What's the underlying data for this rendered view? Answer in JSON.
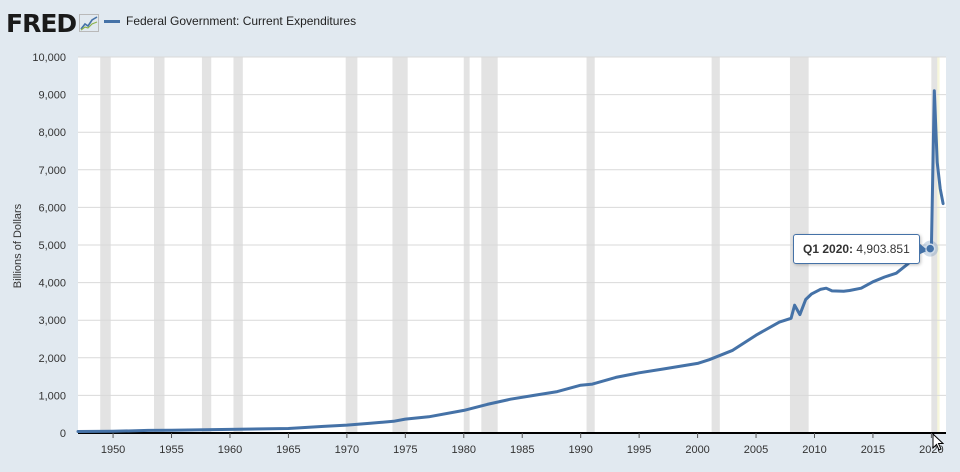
{
  "header": {
    "logo_text": "FRED",
    "legend_label": "Federal Government: Current Expenditures"
  },
  "colors": {
    "series": "#4572a7",
    "recession": "#e3e3e3",
    "background": "#e1e9f0",
    "plot": "#ffffff",
    "highlight": "#f7f7dc"
  },
  "tooltip": {
    "date": "Q1 2020:",
    "value": "4,903.851"
  },
  "chart_data": {
    "type": "line",
    "title": "Federal Government: Current Expenditures",
    "xlabel": "",
    "ylabel": "Billions of Dollars",
    "xlim": [
      1947,
      2021.25
    ],
    "ylim": [
      0,
      10000
    ],
    "y_ticks": [
      0,
      1000,
      2000,
      3000,
      4000,
      5000,
      6000,
      7000,
      8000,
      9000,
      10000
    ],
    "y_tick_labels": [
      "0",
      "1,000",
      "2,000",
      "3,000",
      "4,000",
      "5,000",
      "6,000",
      "7,000",
      "8,000",
      "9,000",
      "10,000"
    ],
    "x_ticks": [
      1950,
      1955,
      1960,
      1965,
      1970,
      1975,
      1980,
      1985,
      1990,
      1995,
      2000,
      2005,
      2010,
      2015,
      2020
    ],
    "x_tick_labels": [
      "1950",
      "1955",
      "1960",
      "1965",
      "1970",
      "1975",
      "1980",
      "1985",
      "1990",
      "1995",
      "2000",
      "2005",
      "2010",
      "2015",
      "2020"
    ],
    "grid": "horizontal",
    "legend": "top-left",
    "recessions": [
      [
        1948.9,
        1949.8
      ],
      [
        1953.5,
        1954.4
      ],
      [
        1957.6,
        1958.4
      ],
      [
        1960.3,
        1961.1
      ],
      [
        1969.9,
        1970.9
      ],
      [
        1973.9,
        1975.2
      ],
      [
        1980.0,
        1980.5
      ],
      [
        1981.5,
        1982.9
      ],
      [
        1990.5,
        1991.2
      ],
      [
        2001.2,
        2001.9
      ],
      [
        2007.9,
        2009.5
      ],
      [
        2020.0,
        2020.5
      ]
    ],
    "highlight_range": [
      2020.0,
      2020.7
    ],
    "series": [
      {
        "name": "Federal Government: Current Expenditures",
        "x": [
          1947,
          1950,
          1953,
          1955,
          1960,
          1965,
          1968,
          1970,
          1972,
          1974,
          1975,
          1977,
          1980,
          1982,
          1984,
          1986,
          1988,
          1990,
          1991,
          1993,
          1995,
          1997,
          2000,
          2001,
          2003,
          2005,
          2007,
          2008.0,
          2008.3,
          2008.75,
          2009.25,
          2009.75,
          2010.5,
          2011,
          2011.5,
          2012.5,
          2013,
          2014,
          2015,
          2016,
          2017,
          2018,
          2019,
          2019.75,
          2020.0,
          2020.25,
          2020.5,
          2020.75,
          2021.0
        ],
        "y": [
          40,
          45,
          70,
          72,
          95,
          120,
          175,
          210,
          260,
          310,
          370,
          430,
          600,
          760,
          900,
          1000,
          1100,
          1270,
          1300,
          1480,
          1600,
          1700,
          1850,
          1950,
          2200,
          2600,
          2950,
          3050,
          3400,
          3150,
          3550,
          3700,
          3820,
          3850,
          3780,
          3770,
          3790,
          3850,
          4020,
          4150,
          4250,
          4500,
          4800,
          4903.851,
          4903.851,
          9100,
          7200,
          6500,
          6100
        ]
      }
    ]
  }
}
